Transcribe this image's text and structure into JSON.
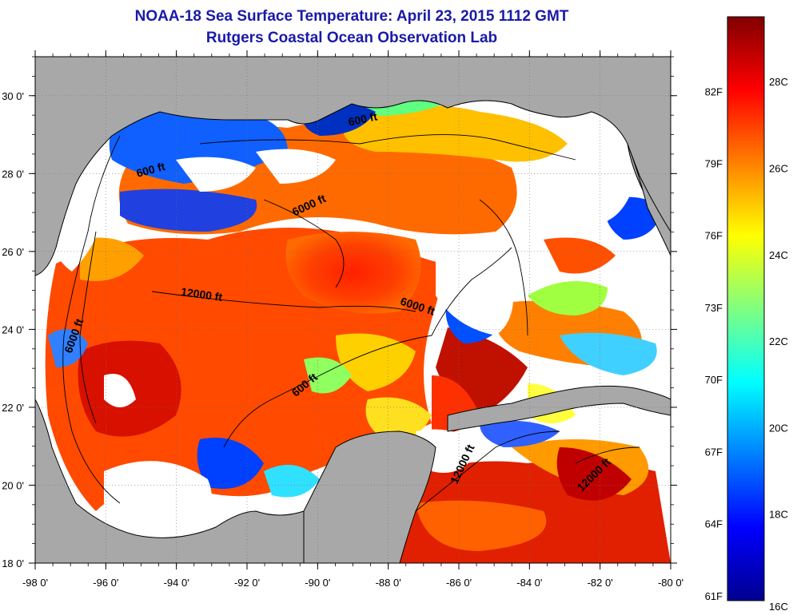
{
  "header": {
    "title": "NOAA-18 Sea Surface Temperature:  April 23, 2015 1112 GMT",
    "subtitle": "Rutgers Coastal Ocean Observation Lab"
  },
  "map": {
    "region": "Gulf of Mexico",
    "lon_range": [
      -98,
      -80
    ],
    "lat_range": [
      18,
      31
    ],
    "lon_ticks": [
      "-98 0'",
      "-96 0'",
      "-94 0'",
      "-92 0'",
      "-90 0'",
      "-88 0'",
      "-86 0'",
      "-84 0'",
      "-82 0'",
      "-80 0'"
    ],
    "lat_ticks": [
      "18 0'",
      "20 0'",
      "22 0'",
      "24 0'",
      "26 0'",
      "28 0'",
      "30 0'"
    ],
    "contour_labels": [
      {
        "text": "600 ft",
        "lon": -94.7,
        "lat": 28.0,
        "angle": -15
      },
      {
        "text": "600 ft",
        "lon": -88.7,
        "lat": 29.3,
        "angle": -12
      },
      {
        "text": "6000 ft",
        "lon": -90.2,
        "lat": 27.1,
        "angle": -25
      },
      {
        "text": "12000 ft",
        "lon": -93.3,
        "lat": 24.8,
        "angle": 8
      },
      {
        "text": "6000 ft",
        "lon": -87.2,
        "lat": 24.5,
        "angle": 18
      },
      {
        "text": "6000 ft",
        "lon": -96.8,
        "lat": 23.8,
        "angle": -70
      },
      {
        "text": "600 ft",
        "lon": -90.3,
        "lat": 22.5,
        "angle": -40
      },
      {
        "text": "12000 ft",
        "lon": -85.8,
        "lat": 20.5,
        "angle": -65
      },
      {
        "text": "12000 ft",
        "lon": -82.1,
        "lat": 20.2,
        "angle": -45
      }
    ],
    "colors": {
      "land": "#a8a8a8",
      "cloud": "#ffffff",
      "frame": "#000000"
    }
  },
  "colorbar": {
    "fahrenheit_labels": [
      {
        "label": "82F",
        "value": 82
      },
      {
        "label": "79F",
        "value": 79
      },
      {
        "label": "76F",
        "value": 76
      },
      {
        "label": "73F",
        "value": 73
      },
      {
        "label": "70F",
        "value": 70
      },
      {
        "label": "67F",
        "value": 67
      },
      {
        "label": "64F",
        "value": 64
      },
      {
        "label": "61F",
        "value": 61
      }
    ],
    "celsius_labels": [
      {
        "label": "28C",
        "value": 28
      },
      {
        "label": "26C",
        "value": 26
      },
      {
        "label": "24C",
        "value": 24
      },
      {
        "label": "22C",
        "value": 22
      },
      {
        "label": "20C",
        "value": 20
      },
      {
        "label": "18C",
        "value": 18
      },
      {
        "label": "16C",
        "value": 16
      }
    ],
    "range_c": [
      16,
      29.5
    ],
    "stops": [
      "#00008f",
      "#0000ff",
      "#0080ff",
      "#00ffff",
      "#80ff80",
      "#ffff00",
      "#ff8000",
      "#ff0000",
      "#800000"
    ]
  }
}
